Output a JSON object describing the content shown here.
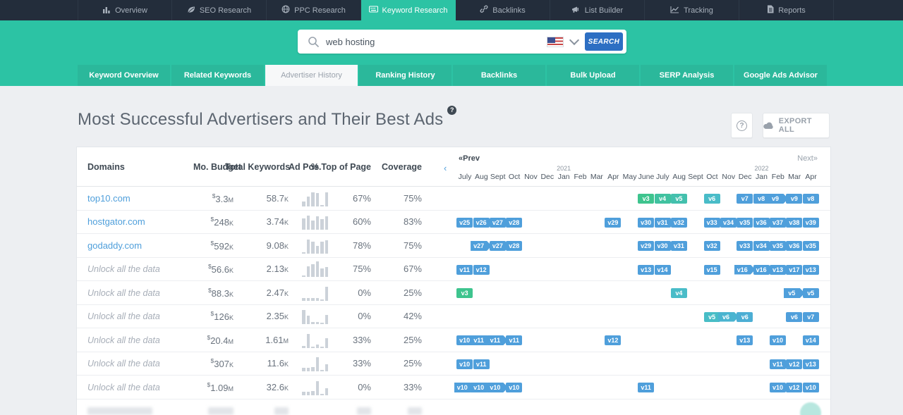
{
  "topnav": {
    "items": [
      {
        "label": "Overview",
        "icon": "bar-chart-icon",
        "active": false
      },
      {
        "label": "SEO Research",
        "icon": "leaf-icon",
        "active": false
      },
      {
        "label": "PPC Research",
        "icon": "globe-icon",
        "active": false
      },
      {
        "label": "Keyword Research",
        "icon": "keyboard-icon",
        "active": true
      },
      {
        "label": "Backlinks",
        "icon": "link-icon",
        "active": false
      },
      {
        "label": "List Builder",
        "icon": "megaphone-icon",
        "active": false
      },
      {
        "label": "Tracking",
        "icon": "line-chart-icon",
        "active": false
      },
      {
        "label": "Reports",
        "icon": "document-icon",
        "active": false
      }
    ]
  },
  "search": {
    "query": "web hosting",
    "button_label": "SEARCH",
    "flag": "us-flag"
  },
  "subnav": {
    "tabs": [
      {
        "label": "Keyword Overview",
        "active": false
      },
      {
        "label": "Related Keywords",
        "active": false
      },
      {
        "label": "Advertiser History",
        "active": true
      },
      {
        "label": "Ranking History",
        "active": false
      },
      {
        "label": "Backlinks",
        "active": false
      },
      {
        "label": "Bulk Upload",
        "active": false
      },
      {
        "label": "SERP Analysis",
        "active": false
      },
      {
        "label": "Google Ads Advisor",
        "active": false
      }
    ]
  },
  "page": {
    "title": "Most Successful Advertisers and Their Best Ads",
    "title_help": "?",
    "help_button": "?",
    "export_label": "EXPORT ALL"
  },
  "table": {
    "columns": {
      "domains": "Domains",
      "budget": "Mo. Budget",
      "keywords": "Total Keywords",
      "ad_pos": "Ad Pos.",
      "top_of_page": "% Top of Page",
      "coverage": "Coverage"
    },
    "timeline": {
      "prev": "«Prev",
      "next": "Next»",
      "collapse": "‹",
      "months": [
        "July",
        "Aug",
        "Sept",
        "Oct",
        "Nov",
        "Dec",
        "Jan",
        "Feb",
        "Mar",
        "Apr",
        "May",
        "June",
        "July",
        "Aug",
        "Sept",
        "Oct",
        "Nov",
        "Dec",
        "Jan",
        "Feb",
        "Mar",
        "Apr"
      ],
      "years": [
        {
          "label": "2021",
          "month": 6
        },
        {
          "label": "2022",
          "month": 18
        }
      ]
    },
    "locked_label": "Unlock all the data",
    "rows": [
      {
        "domain": "top10.com",
        "locked": false,
        "budget": {
          "sym": "$",
          "num": "3.3",
          "unit": "M"
        },
        "keywords": {
          "num": "58.7",
          "unit": "K"
        },
        "bars": [
          30,
          62,
          85,
          82,
          8,
          88
        ],
        "top_of_page": "67%",
        "coverage": "75%",
        "badges": [
          {
            "label": "v3",
            "month": 11,
            "color": "#3ec48e",
            "arrow": false
          },
          {
            "label": "v4",
            "month": 12,
            "color": "#40c2a0",
            "arrow": false
          },
          {
            "label": "v5",
            "month": 13,
            "color": "#43c0ad",
            "arrow": false
          },
          {
            "label": "v6",
            "month": 15,
            "color": "#49bcc8",
            "arrow": false
          },
          {
            "label": "v7",
            "month": 17,
            "color": "#4f9fdb",
            "arrow": false
          },
          {
            "label": "v8",
            "month": 18,
            "color": "#4f9fdb",
            "arrow": false
          },
          {
            "label": "v9",
            "month": 19,
            "color": "#4f9fdb",
            "arrow": true
          },
          {
            "label": "v9",
            "month": 20,
            "color": "#4f9fdb",
            "arrow": false
          },
          {
            "label": "v8",
            "month": 21,
            "color": "#4f9fdb",
            "arrow": false
          }
        ]
      },
      {
        "domain": "hostgator.com",
        "locked": false,
        "budget": {
          "sym": "$",
          "num": "248",
          "unit": "K"
        },
        "keywords": {
          "num": "3.74",
          "unit": "K"
        },
        "bars": [
          72,
          90,
          58,
          85,
          68,
          85
        ],
        "top_of_page": "60%",
        "coverage": "83%",
        "badges": [
          {
            "label": "v25",
            "month": 0,
            "color": "#4f9fdb",
            "arrow": false
          },
          {
            "label": "v26",
            "month": 1,
            "color": "#4f9fdb",
            "arrow": false
          },
          {
            "label": "v27",
            "month": 2,
            "color": "#4f9fdb",
            "arrow": false
          },
          {
            "label": "v28",
            "month": 3,
            "color": "#4f9fdb",
            "arrow": false
          },
          {
            "label": "v29",
            "month": 9,
            "color": "#4f9fdb",
            "arrow": false
          },
          {
            "label": "v30",
            "month": 11,
            "color": "#4f9fdb",
            "arrow": false
          },
          {
            "label": "v31",
            "month": 12,
            "color": "#4f9fdb",
            "arrow": false
          },
          {
            "label": "v32",
            "month": 13,
            "color": "#4f9fdb",
            "arrow": false
          },
          {
            "label": "v33",
            "month": 15,
            "color": "#4f9fdb",
            "arrow": false
          },
          {
            "label": "v34",
            "month": 16,
            "color": "#4f9fdb",
            "arrow": false
          },
          {
            "label": "v35",
            "month": 17,
            "color": "#4f9fdb",
            "arrow": false
          },
          {
            "label": "v36",
            "month": 18,
            "color": "#4f9fdb",
            "arrow": false
          },
          {
            "label": "v37",
            "month": 19,
            "color": "#4f9fdb",
            "arrow": false
          },
          {
            "label": "v38",
            "month": 20,
            "color": "#4f9fdb",
            "arrow": false
          },
          {
            "label": "v39",
            "month": 21,
            "color": "#4f9fdb",
            "arrow": false
          }
        ]
      },
      {
        "domain": "godaddy.com",
        "locked": false,
        "budget": {
          "sym": "$",
          "num": "592",
          "unit": "K"
        },
        "keywords": {
          "num": "9.08",
          "unit": "K"
        },
        "bars": [
          8,
          88,
          72,
          48,
          75,
          82
        ],
        "top_of_page": "78%",
        "coverage": "75%",
        "badges": [
          {
            "label": "v27",
            "month": 1,
            "color": "#4f9fdb",
            "arrow": true
          },
          {
            "label": "v27",
            "month": 2,
            "color": "#4f9fdb",
            "arrow": false
          },
          {
            "label": "v28",
            "month": 3,
            "color": "#4f9fdb",
            "arrow": false
          },
          {
            "label": "v29",
            "month": 11,
            "color": "#4f9fdb",
            "arrow": false
          },
          {
            "label": "v30",
            "month": 12,
            "color": "#4f9fdb",
            "arrow": false
          },
          {
            "label": "v31",
            "month": 13,
            "color": "#4f9fdb",
            "arrow": false
          },
          {
            "label": "v32",
            "month": 15,
            "color": "#4f9fdb",
            "arrow": false
          },
          {
            "label": "v33",
            "month": 17,
            "color": "#4f9fdb",
            "arrow": false
          },
          {
            "label": "v34",
            "month": 18,
            "color": "#4f9fdb",
            "arrow": false
          },
          {
            "label": "v35",
            "month": 19,
            "color": "#4f9fdb",
            "arrow": false
          },
          {
            "label": "v36",
            "month": 20,
            "color": "#4f9fdb",
            "arrow": false
          },
          {
            "label": "v35",
            "month": 21,
            "color": "#4f9fdb",
            "arrow": false
          }
        ]
      },
      {
        "domain": "",
        "locked": true,
        "budget": {
          "sym": "$",
          "num": "56.6",
          "unit": "K"
        },
        "keywords": {
          "num": "2.13",
          "unit": "K"
        },
        "bars": [
          12,
          68,
          78,
          95,
          52,
          62
        ],
        "top_of_page": "75%",
        "coverage": "67%",
        "badges": [
          {
            "label": "v11",
            "month": 0,
            "color": "#4f9fdb",
            "arrow": false
          },
          {
            "label": "v12",
            "month": 1,
            "color": "#4f9fdb",
            "arrow": false
          },
          {
            "label": "v13",
            "month": 11,
            "color": "#4f9fdb",
            "arrow": false
          },
          {
            "label": "v14",
            "month": 12,
            "color": "#4f9fdb",
            "arrow": false
          },
          {
            "label": "v15",
            "month": 15,
            "color": "#4f9fdb",
            "arrow": false
          },
          {
            "label": "v16",
            "month": 17,
            "color": "#4f9fdb",
            "arrow": true
          },
          {
            "label": "v16",
            "month": 18,
            "color": "#4f9fdb",
            "arrow": false
          },
          {
            "label": "v13",
            "month": 19,
            "color": "#4f9fdb",
            "arrow": false
          },
          {
            "label": "v17",
            "month": 20,
            "color": "#4f9fdb",
            "arrow": false
          },
          {
            "label": "v13",
            "month": 21,
            "color": "#4f9fdb",
            "arrow": false
          }
        ]
      },
      {
        "domain": "",
        "locked": true,
        "budget": {
          "sym": "$",
          "num": "88.3",
          "unit": "K"
        },
        "keywords": {
          "num": "2.47",
          "unit": "K"
        },
        "bars": [
          18,
          18,
          18,
          18,
          6,
          85
        ],
        "top_of_page": "0%",
        "coverage": "25%",
        "badges": [
          {
            "label": "v3",
            "month": 0,
            "color": "#3ec48e",
            "arrow": false
          },
          {
            "label": "v4",
            "month": 13,
            "color": "#49bcc8",
            "arrow": false
          },
          {
            "label": "v5",
            "month": 20,
            "color": "#4f9fdb",
            "arrow": true
          },
          {
            "label": "v5",
            "month": 21,
            "color": "#4f9fdb",
            "arrow": false
          }
        ]
      },
      {
        "domain": "",
        "locked": true,
        "budget": {
          "sym": "$",
          "num": "126",
          "unit": "K"
        },
        "keywords": {
          "num": "2.35",
          "unit": "K"
        },
        "bars": [
          88,
          55,
          15,
          15,
          8,
          58
        ],
        "top_of_page": "0%",
        "coverage": "42%",
        "badges": [
          {
            "label": "v5",
            "month": 15,
            "color": "#48bdc6",
            "arrow": false
          },
          {
            "label": "v6",
            "month": 16,
            "color": "#4ab4d0",
            "arrow": true
          },
          {
            "label": "v6",
            "month": 17,
            "color": "#4caed4",
            "arrow": false
          },
          {
            "label": "v6",
            "month": 20,
            "color": "#4f9fdb",
            "arrow": false
          },
          {
            "label": "v7",
            "month": 21,
            "color": "#4f9fdb",
            "arrow": false
          }
        ]
      },
      {
        "domain": "",
        "locked": true,
        "budget": {
          "sym": "$",
          "num": "20.4",
          "unit": "M"
        },
        "keywords": {
          "num": "1.61",
          "unit": "M"
        },
        "bars": [
          12,
          85,
          8,
          22,
          8,
          62
        ],
        "top_of_page": "33%",
        "coverage": "25%",
        "badges": [
          {
            "label": "v10",
            "month": 0,
            "color": "#4f9fdb",
            "arrow": false
          },
          {
            "label": "v11",
            "month": 1,
            "color": "#4f9fdb",
            "arrow": true
          },
          {
            "label": "v11",
            "month": 2,
            "color": "#4f9fdb",
            "arrow": true
          },
          {
            "label": "v11",
            "month": 3,
            "color": "#4f9fdb",
            "arrow": false
          },
          {
            "label": "v12",
            "month": 9,
            "color": "#4f9fdb",
            "arrow": false
          },
          {
            "label": "v13",
            "month": 17,
            "color": "#4f9fdb",
            "arrow": false
          },
          {
            "label": "v10",
            "month": 19,
            "color": "#4f9fdb",
            "arrow": false
          },
          {
            "label": "v14",
            "month": 21,
            "color": "#4f9fdb",
            "arrow": false
          }
        ]
      },
      {
        "domain": "",
        "locked": true,
        "budget": {
          "sym": "$",
          "num": "307",
          "unit": "K"
        },
        "keywords": {
          "num": "11.6",
          "unit": "K"
        },
        "bars": [
          22,
          22,
          28,
          88,
          10,
          45
        ],
        "top_of_page": "33%",
        "coverage": "25%",
        "badges": [
          {
            "label": "v10",
            "month": 0,
            "color": "#4f9fdb",
            "arrow": false
          },
          {
            "label": "v11",
            "month": 1,
            "color": "#4f9fdb",
            "arrow": false
          },
          {
            "label": "v11",
            "month": 19,
            "color": "#4f9fdb",
            "arrow": false
          },
          {
            "label": "v12",
            "month": 20,
            "color": "#4f9fdb",
            "arrow": false
          },
          {
            "label": "v13",
            "month": 21,
            "color": "#4f9fdb",
            "arrow": false
          }
        ]
      },
      {
        "domain": "",
        "locked": true,
        "budget": {
          "sym": "$",
          "num": "1.09",
          "unit": "M"
        },
        "keywords": {
          "num": "32.6",
          "unit": "K"
        },
        "bars": [
          20,
          20,
          26,
          85,
          8,
          42
        ],
        "top_of_page": "0%",
        "coverage": "33%",
        "badges": [
          {
            "label": "v10",
            "month": 0,
            "color": "#4f9fdb",
            "arrow": true
          },
          {
            "label": "v10",
            "month": 1,
            "color": "#4f9fdb",
            "arrow": true
          },
          {
            "label": "v10",
            "month": 2,
            "color": "#4f9fdb",
            "arrow": true
          },
          {
            "label": "v10",
            "month": 3,
            "color": "#4f9fdb",
            "arrow": false
          },
          {
            "label": "v11",
            "month": 11,
            "color": "#4f9fdb",
            "arrow": false
          },
          {
            "label": "v10",
            "month": 19,
            "color": "#4f9fdb",
            "arrow": false
          },
          {
            "label": "v12",
            "month": 20,
            "color": "#4f9fdb",
            "arrow": false
          },
          {
            "label": "v10",
            "month": 21,
            "color": "#4f9fdb",
            "arrow": false
          }
        ]
      }
    ]
  }
}
